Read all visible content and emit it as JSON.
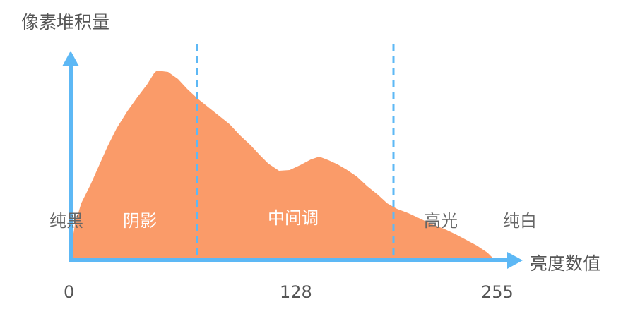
{
  "axes": {
    "y_title": "像素堆积量",
    "x_title": "亮度数值"
  },
  "ticks": [
    "0",
    "128",
    "255"
  ],
  "zones": {
    "pure_black": "纯黑",
    "shadows": "阴影",
    "midtones": "中间调",
    "highlights": "高光",
    "pure_white": "纯白"
  },
  "colors": {
    "histogram_fill": "#FA9B69",
    "axis": "#5DB8F5",
    "divider": "#5DB8F5"
  }
}
